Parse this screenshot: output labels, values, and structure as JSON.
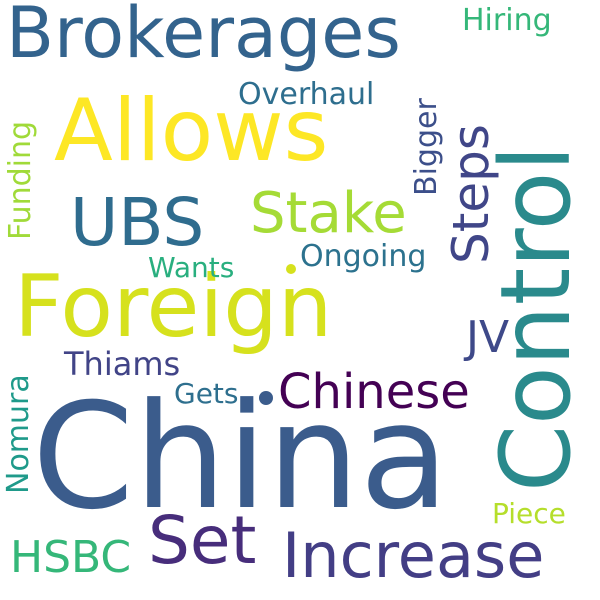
{
  "words": [
    {
      "text": "China",
      "color": "#3b5c8c"
    },
    {
      "text": "Control",
      "color": "#2a8a8c"
    },
    {
      "text": "Foreign",
      "color": "#d6e11d"
    },
    {
      "text": "Allows",
      "color": "#fde725"
    },
    {
      "text": "Brokerages",
      "color": "#33638d"
    },
    {
      "text": "Increase",
      "color": "#433e85"
    },
    {
      "text": "UBS",
      "color": "#2f6c8e"
    },
    {
      "text": "Stake",
      "color": "#a5db36"
    },
    {
      "text": "Set",
      "color": "#472d7b"
    },
    {
      "text": "Chinese",
      "color": "#440154"
    },
    {
      "text": "Steps",
      "color": "#404688"
    },
    {
      "text": "HSBC",
      "color": "#35b779"
    },
    {
      "text": "JV",
      "color": "#3e4989"
    },
    {
      "text": "Hiring",
      "color": "#35b779"
    },
    {
      "text": "Overhaul",
      "color": "#2e6e8e"
    },
    {
      "text": "Bigger",
      "color": "#3c4f8a"
    },
    {
      "text": "Ongoing",
      "color": "#2c728e"
    },
    {
      "text": "Wants",
      "color": "#29af7f"
    },
    {
      "text": "Thiams",
      "color": "#414487"
    },
    {
      "text": "Gets",
      "color": "#2e6f8e"
    },
    {
      "text": "Funding",
      "color": "#a0da39"
    },
    {
      "text": "Nomura",
      "color": "#1f9a8a"
    },
    {
      "text": "Piece",
      "color": "#b5de2b"
    }
  ],
  "dots": [
    {
      "color": "#d6e11d"
    },
    {
      "color": "#3b5c8c"
    }
  ]
}
